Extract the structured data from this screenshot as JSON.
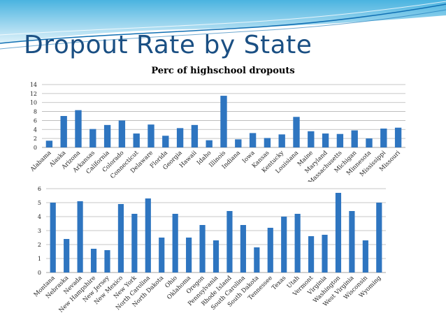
{
  "slide": {
    "title": "Dropout Rate by State",
    "header_colors": {
      "bg_top": "#4ab3e0",
      "bg_bottom": "#dff2fa",
      "band": "#0f6fb3"
    }
  },
  "chart_data": [
    {
      "type": "bar",
      "title": "Perc of highschool dropouts",
      "xlabel": "",
      "ylabel": "",
      "ylim": [
        0,
        14
      ],
      "yticks": [
        0,
        2,
        4,
        6,
        8,
        10,
        12,
        14
      ],
      "grid": true,
      "bar_color": "#2e75c0",
      "categories": [
        "Alabama",
        "Alaska",
        "Arizona",
        "Arkansas",
        "California",
        "Colorado",
        "Connecticut",
        "Delaware",
        "Florida",
        "Georgia",
        "Hawaii",
        "Idaho",
        "Illinois",
        "Indiana",
        "Iowa",
        "Kansas",
        "Kentucky",
        "Louisiana",
        "Maine",
        "Maryland",
        "Massachusetts",
        "Michigan",
        "Minnesota",
        "Mississippi",
        "Missouri"
      ],
      "values": [
        1.5,
        7,
        8.3,
        4.1,
        5,
        6,
        3.1,
        5.1,
        2.6,
        4.3,
        5,
        1.6,
        11.5,
        1.8,
        3.2,
        2.1,
        2.9,
        6.8,
        3.6,
        3.1,
        3,
        3.8,
        2,
        4.2,
        4.4
      ]
    },
    {
      "type": "bar",
      "title": "",
      "xlabel": "",
      "ylabel": "",
      "ylim": [
        0,
        6
      ],
      "yticks": [
        0,
        1,
        2,
        3,
        4,
        5,
        6
      ],
      "grid": true,
      "bar_color": "#2e75c0",
      "categories": [
        "Montana",
        "Nebraska",
        "Nevada",
        "New Hampshire",
        "New Jersey",
        "New Mexico",
        "New York",
        "North Carolina",
        "North Dakota",
        "Ohio",
        "Oklahoma",
        "Oregon",
        "Pennsylvania",
        "Rhode Island",
        "South Carolina",
        "South Dakota",
        "Tennessee",
        "Texas",
        "Utah",
        "Vermont",
        "Virginia",
        "Washington",
        "West Virginia",
        "Wisconsin",
        "Wyoming"
      ],
      "values": [
        5,
        2.4,
        5.1,
        1.7,
        1.6,
        4.9,
        4.2,
        5.3,
        2.5,
        4.2,
        2.5,
        3.4,
        2.3,
        4.4,
        3.4,
        1.8,
        3.2,
        4,
        4.2,
        2.6,
        2.7,
        5.7,
        4.4,
        2.3,
        5
      ]
    }
  ]
}
